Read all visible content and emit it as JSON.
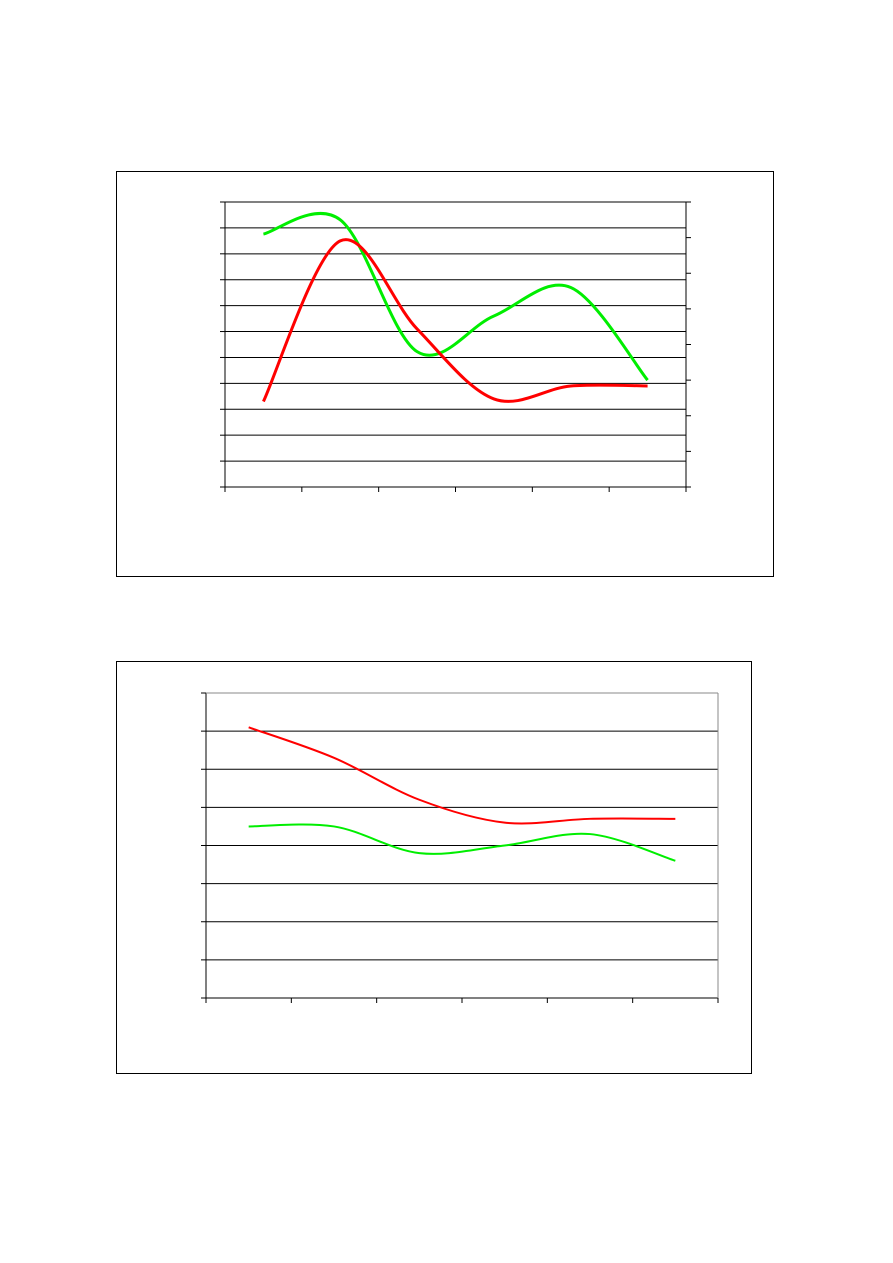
{
  "chart_data": [
    {
      "type": "line",
      "axes": "dual-y",
      "categories": [
        "",
        "",
        "",
        "",
        "",
        ""
      ],
      "grid": true,
      "legend": "none",
      "ylim": [
        0,
        11
      ],
      "y2lim": [
        0,
        8
      ],
      "colors": {
        "primary": "#ff0000",
        "secondary": "#00ee00"
      },
      "series": [
        {
          "axis": "left",
          "color": "#ff0000",
          "values": [
            3.3,
            9.5,
            6.1,
            3.4,
            3.9,
            3.9
          ]
        },
        {
          "axis": "right",
          "color": "#00ee00",
          "values": [
            7.1,
            7.5,
            3.8,
            4.8,
            5.6,
            3.0
          ]
        }
      ]
    },
    {
      "type": "line",
      "axes": "single-y",
      "categories": [
        "",
        "",
        "",
        "",
        "",
        ""
      ],
      "grid": true,
      "legend": "none",
      "ylim": [
        0,
        8
      ],
      "colors": {
        "primary": "#ff0000",
        "secondary": "#00ee00"
      },
      "series": [
        {
          "axis": "left",
          "color": "#ff0000",
          "values": [
            7.1,
            6.3,
            5.2,
            4.6,
            4.7,
            4.7
          ]
        },
        {
          "axis": "left",
          "color": "#00ee00",
          "values": [
            4.5,
            4.5,
            3.8,
            4.0,
            4.3,
            3.6
          ]
        }
      ]
    }
  ]
}
